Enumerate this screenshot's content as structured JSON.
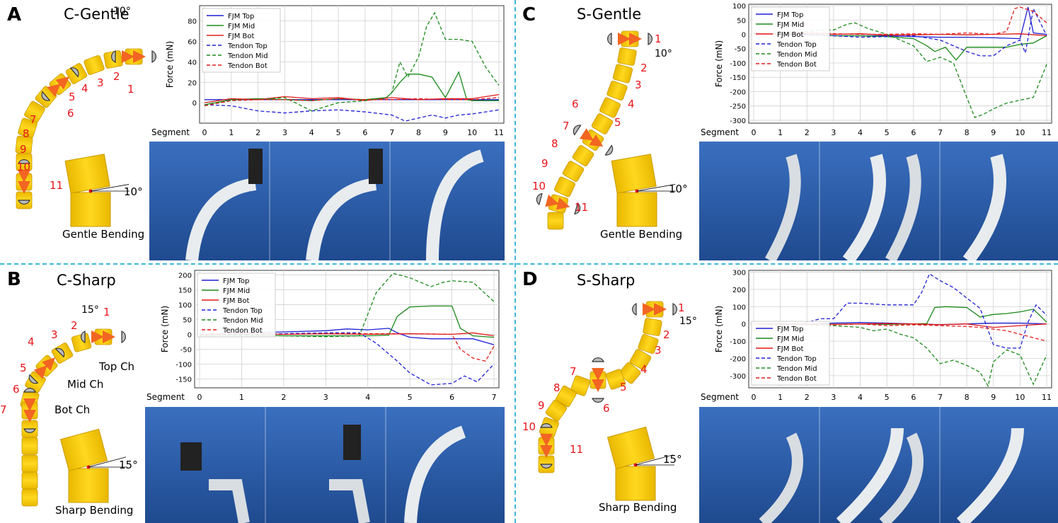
{
  "panels": [
    {
      "id": "A",
      "letter": "A",
      "title": "C-Gentle",
      "angle_label": "10°",
      "bending_label": "Gentle Bending",
      "segment_numbers": [
        "1",
        "2",
        "3",
        "4",
        "5",
        "6",
        "7",
        "8",
        "9",
        "10",
        "11"
      ]
    },
    {
      "id": "B",
      "letter": "B",
      "title": "C-Sharp",
      "angle_label": "15°",
      "bending_label": "Sharp Bending",
      "segment_numbers": [
        "1",
        "2",
        "3",
        "4",
        "5",
        "6",
        "7"
      ],
      "channel_labels": {
        "top": "Top Ch",
        "mid": "Mid Ch",
        "bot": "Bot Ch"
      }
    },
    {
      "id": "C",
      "letter": "C",
      "title": "S-Gentle",
      "angle_label": "10°",
      "bending_label": "Gentle Bending",
      "segment_numbers": [
        "1",
        "2",
        "3",
        "4",
        "5",
        "6",
        "7",
        "8",
        "9",
        "10",
        "11"
      ]
    },
    {
      "id": "D",
      "letter": "D",
      "title": "S-Sharp",
      "angle_label": "15°",
      "bending_label": "Sharp Bending",
      "segment_numbers": [
        "1",
        "2",
        "3",
        "4",
        "5",
        "6",
        "7",
        "8",
        "9",
        "10",
        "11"
      ]
    }
  ],
  "colors": {
    "segment": "#f8cd0a",
    "segment_edge": "#c99a00",
    "arrow": "#f26522",
    "number": "#e8141b",
    "divider": "#3fb6d6",
    "photo_bg": "#2d5da6",
    "top": "#1f1fd6",
    "mid": "#1b8a1b",
    "bot": "#e41b1b"
  },
  "chart_data": [
    {
      "id": "A",
      "type": "line",
      "ylabel": "Force (mN)",
      "xlabel": "Segment",
      "ylim": [
        -20,
        95
      ],
      "yticks": [
        0,
        20,
        40,
        60,
        80
      ],
      "xticks": [
        0,
        1,
        2,
        3,
        4,
        5,
        6,
        7,
        8,
        9,
        10,
        11
      ],
      "xlim": [
        0,
        11
      ],
      "legend": "top-left",
      "grid": true,
      "series": [
        {
          "name": "FJM Top",
          "style": "solid",
          "color": "top",
          "x": [
            0,
            1,
            2,
            3,
            4,
            5,
            6,
            7,
            8,
            9,
            10,
            11
          ],
          "y": [
            3,
            3,
            3,
            3,
            3,
            3,
            3,
            3,
            3,
            3,
            3,
            3
          ]
        },
        {
          "name": "FJM Mid",
          "style": "solid",
          "color": "mid",
          "x": [
            0,
            1,
            2,
            3,
            4,
            5,
            6,
            6.8,
            7,
            7.3,
            7.6,
            8,
            8.5,
            9,
            9.5,
            9.8,
            10,
            10.5,
            11
          ],
          "y": [
            -2,
            3,
            4,
            3,
            2,
            4,
            3,
            5,
            10,
            20,
            28,
            28,
            25,
            5,
            30,
            3,
            2,
            2,
            2
          ]
        },
        {
          "name": "FJM Bot",
          "style": "solid",
          "color": "bot",
          "x": [
            0,
            1,
            2,
            3,
            4,
            5,
            6,
            7,
            8,
            9,
            10,
            11
          ],
          "y": [
            0,
            4,
            3,
            6,
            4,
            5,
            2,
            5,
            3,
            4,
            4,
            8
          ]
        },
        {
          "name": "Tendon Top",
          "style": "dashed",
          "color": "top",
          "x": [
            0,
            1,
            2,
            3,
            4,
            5,
            6,
            7,
            7.5,
            8,
            8.5,
            9,
            9.5,
            10,
            11
          ],
          "y": [
            -2,
            -3,
            -8,
            -10,
            -8,
            -7,
            -9,
            -12,
            -18,
            -15,
            -12,
            -15,
            -12,
            -11,
            -7
          ]
        },
        {
          "name": "Tendon Mid",
          "style": "dashed",
          "color": "mid",
          "x": [
            0,
            1,
            2,
            3,
            4,
            5,
            6,
            6.8,
            7,
            7.3,
            7.6,
            8,
            8.3,
            8.6,
            9,
            9.5,
            10,
            10.5,
            11
          ],
          "y": [
            -2,
            2,
            3,
            5,
            -8,
            0,
            2,
            5,
            10,
            40,
            25,
            45,
            75,
            88,
            62,
            62,
            60,
            35,
            17
          ]
        },
        {
          "name": "Tendon Bot",
          "style": "dashed",
          "color": "bot",
          "x": [
            0,
            1,
            2,
            3,
            4,
            5,
            6,
            7,
            8,
            9,
            10,
            11
          ],
          "y": [
            -3,
            2,
            3,
            3,
            2,
            4,
            3,
            3,
            4,
            3,
            3,
            5
          ]
        }
      ]
    },
    {
      "id": "B",
      "type": "line",
      "ylabel": "Force (mN)",
      "xlabel": "Segment",
      "ylim": [
        -180,
        215
      ],
      "yticks": [
        -150,
        -100,
        -50,
        0,
        50,
        100,
        150,
        200
      ],
      "xticks": [
        0,
        1,
        2,
        3,
        4,
        5,
        6,
        7
      ],
      "xlim": [
        0,
        7
      ],
      "legend": "top-left",
      "grid": true,
      "series": [
        {
          "name": "FJM Top",
          "style": "solid",
          "color": "top",
          "x": [
            0,
            1,
            2,
            3,
            3.5,
            4,
            4.5,
            4.7,
            5,
            5.5,
            6,
            6.5,
            7
          ],
          "y": [
            0,
            5,
            8,
            12,
            18,
            15,
            20,
            5,
            -10,
            -15,
            -15,
            -15,
            -35
          ]
        },
        {
          "name": "FJM Mid",
          "style": "solid",
          "color": "mid",
          "x": [
            0,
            1,
            2,
            3,
            4,
            4.5,
            4.7,
            5,
            5.5,
            6,
            6.2,
            6.5,
            7
          ],
          "y": [
            -5,
            -2,
            -5,
            -5,
            -5,
            -3,
            60,
            92,
            95,
            95,
            20,
            -5,
            -10
          ]
        },
        {
          "name": "FJM Bot",
          "style": "solid",
          "color": "bot",
          "x": [
            0,
            1,
            2,
            3,
            4,
            5,
            6,
            6.5,
            7
          ],
          "y": [
            0,
            3,
            0,
            2,
            0,
            2,
            0,
            5,
            -5
          ]
        },
        {
          "name": "Tendon Top",
          "style": "dashed",
          "color": "top",
          "x": [
            0,
            1,
            2,
            3,
            3.8,
            4.2,
            4.7,
            5,
            5.5,
            6,
            6.3,
            6.6,
            7
          ],
          "y": [
            -2,
            0,
            2,
            5,
            5,
            -30,
            -90,
            -130,
            -170,
            -165,
            -140,
            -160,
            -100
          ]
        },
        {
          "name": "Tendon Mid",
          "style": "dashed",
          "color": "mid",
          "x": [
            0,
            1,
            2,
            3,
            3.8,
            4.2,
            4.6,
            5,
            5.5,
            5.8,
            6,
            6.5,
            7
          ],
          "y": [
            -2,
            -5,
            -5,
            -8,
            -5,
            140,
            205,
            190,
            160,
            175,
            180,
            175,
            110
          ]
        },
        {
          "name": "Tendon Bot",
          "style": "dashed",
          "color": "bot",
          "x": [
            0,
            1,
            2,
            3,
            4,
            5,
            6,
            6.2,
            6.5,
            6.8,
            7
          ],
          "y": [
            -2,
            2,
            0,
            2,
            2,
            2,
            0,
            -50,
            -80,
            -90,
            -40
          ]
        }
      ]
    },
    {
      "id": "C",
      "type": "line",
      "ylabel": "Force (mN)",
      "xlabel": "Segment",
      "ylim": [
        -310,
        105
      ],
      "yticks": [
        -300,
        -250,
        -200,
        -150,
        -100,
        -50,
        0,
        50,
        100
      ],
      "xticks": [
        0,
        1,
        2,
        3,
        4,
        5,
        6,
        7,
        8,
        9,
        10,
        11
      ],
      "xlim": [
        0,
        11
      ],
      "legend": "top-left",
      "grid": true,
      "series": [
        {
          "name": "FJM Top",
          "style": "solid",
          "color": "top",
          "x": [
            0,
            1,
            2,
            3,
            4,
            5,
            6,
            7,
            8,
            9,
            10,
            10.3,
            10.5,
            11
          ],
          "y": [
            2,
            0,
            -2,
            -5,
            -5,
            -5,
            -8,
            -10,
            -10,
            -12,
            -15,
            95,
            5,
            0
          ]
        },
        {
          "name": "FJM Mid",
          "style": "solid",
          "color": "mid",
          "x": [
            0,
            1,
            2,
            3,
            4,
            5,
            6,
            6.5,
            6.8,
            7.2,
            7.6,
            8,
            9,
            9.5,
            10,
            10.5,
            11
          ],
          "y": [
            0,
            5,
            0,
            -5,
            -5,
            -8,
            -15,
            -40,
            -60,
            -45,
            -90,
            -45,
            -45,
            -45,
            -35,
            -30,
            -5
          ]
        },
        {
          "name": "FJM Bot",
          "style": "solid",
          "color": "bot",
          "x": [
            0,
            1,
            2,
            3,
            4,
            5,
            6,
            7,
            8,
            9,
            10,
            11
          ],
          "y": [
            2,
            0,
            5,
            0,
            2,
            -3,
            -2,
            0,
            -2,
            0,
            2,
            -5
          ]
        },
        {
          "name": "Tendon Top",
          "style": "dashed",
          "color": "top",
          "x": [
            0,
            1,
            2,
            3,
            4,
            5,
            6,
            7,
            8,
            8.5,
            9,
            9.5,
            10,
            10.2,
            10.5,
            11
          ],
          "y": [
            2,
            0,
            0,
            -5,
            -10,
            -8,
            -5,
            -20,
            -60,
            -75,
            -75,
            -40,
            -20,
            -65,
            90,
            -5
          ]
        },
        {
          "name": "Tendon Mid",
          "style": "dashed",
          "color": "mid",
          "x": [
            0,
            1,
            2,
            2.5,
            3,
            3.5,
            3.8,
            4.3,
            5,
            6,
            6.5,
            7,
            7.5,
            8,
            8.3,
            8.6,
            9,
            9.5,
            10,
            10.5,
            11
          ],
          "y": [
            0,
            5,
            10,
            15,
            15,
            35,
            40,
            20,
            0,
            -40,
            -95,
            -80,
            -100,
            -220,
            -290,
            -280,
            -260,
            -240,
            -230,
            -220,
            -105
          ]
        },
        {
          "name": "Tendon Bot",
          "style": "dashed",
          "color": "bot",
          "x": [
            0,
            1,
            2,
            3,
            4,
            5,
            6,
            7,
            8,
            9,
            9.5,
            9.8,
            10,
            10.5,
            11
          ],
          "y": [
            5,
            2,
            5,
            2,
            0,
            0,
            2,
            0,
            5,
            0,
            10,
            90,
            95,
            80,
            40
          ]
        }
      ]
    },
    {
      "id": "D",
      "type": "line",
      "ylabel": "Force (mN)",
      "xlabel": "Segment",
      "ylim": [
        -370,
        310
      ],
      "yticks": [
        -300,
        -200,
        -100,
        0,
        100,
        200,
        300
      ],
      "xticks": [
        0,
        1,
        2,
        3,
        4,
        5,
        6,
        7,
        8,
        9,
        10,
        11
      ],
      "xlim": [
        0,
        11
      ],
      "legend": "bottom-left",
      "grid": true,
      "series": [
        {
          "name": "FJM Top",
          "style": "solid",
          "color": "top",
          "x": [
            0,
            1,
            2,
            3,
            4,
            5,
            6,
            7,
            8,
            9,
            10,
            11
          ],
          "y": [
            0,
            -5,
            0,
            5,
            8,
            5,
            0,
            -5,
            0,
            5,
            5,
            0
          ]
        },
        {
          "name": "FJM Mid",
          "style": "solid",
          "color": "mid",
          "x": [
            0,
            1,
            2,
            3,
            4,
            5,
            6,
            6.5,
            6.8,
            7.2,
            8,
            8.5,
            9,
            9.5,
            10,
            10.5,
            11
          ],
          "y": [
            0,
            0,
            -5,
            -2,
            0,
            -3,
            0,
            2,
            95,
            100,
            95,
            40,
            55,
            60,
            70,
            85,
            10
          ]
        },
        {
          "name": "FJM Bot",
          "style": "solid",
          "color": "bot",
          "x": [
            0,
            1,
            2,
            3,
            4,
            5,
            6,
            7,
            8,
            9,
            10,
            11
          ],
          "y": [
            0,
            2,
            0,
            -3,
            0,
            2,
            0,
            -5,
            0,
            -20,
            -10,
            0
          ]
        },
        {
          "name": "Tendon Top",
          "style": "dashed",
          "color": "top",
          "x": [
            0,
            1,
            1.8,
            2.5,
            3,
            3.5,
            4,
            5,
            6,
            6.3,
            6.6,
            7,
            7.5,
            8,
            8.5,
            9,
            9.5,
            10,
            10.3,
            10.6,
            11
          ],
          "y": [
            0,
            0,
            0,
            30,
            30,
            120,
            120,
            110,
            110,
            180,
            290,
            250,
            210,
            150,
            90,
            -120,
            -140,
            -140,
            10,
            110,
            50
          ]
        },
        {
          "name": "Tendon Mid",
          "style": "dashed",
          "color": "mid",
          "x": [
            0,
            1,
            2,
            3,
            4,
            4.5,
            5,
            5.5,
            6,
            6.5,
            7,
            7.5,
            8,
            8.5,
            8.8,
            9,
            9.5,
            10,
            10.5,
            11
          ],
          "y": [
            0,
            0,
            -5,
            -10,
            -20,
            -40,
            -30,
            -60,
            -80,
            -140,
            -230,
            -210,
            -240,
            -280,
            -360,
            -220,
            -150,
            -180,
            -350,
            -180
          ]
        },
        {
          "name": "Tendon Bot",
          "style": "dashed",
          "color": "bot",
          "x": [
            0,
            1,
            2,
            3,
            4,
            5,
            6,
            7,
            8,
            8.5,
            9,
            9.5,
            10,
            10.5,
            11
          ],
          "y": [
            0,
            -5,
            0,
            -5,
            0,
            -10,
            -5,
            -10,
            -15,
            -20,
            -30,
            -40,
            -60,
            -80,
            -100
          ]
        }
      ]
    }
  ]
}
